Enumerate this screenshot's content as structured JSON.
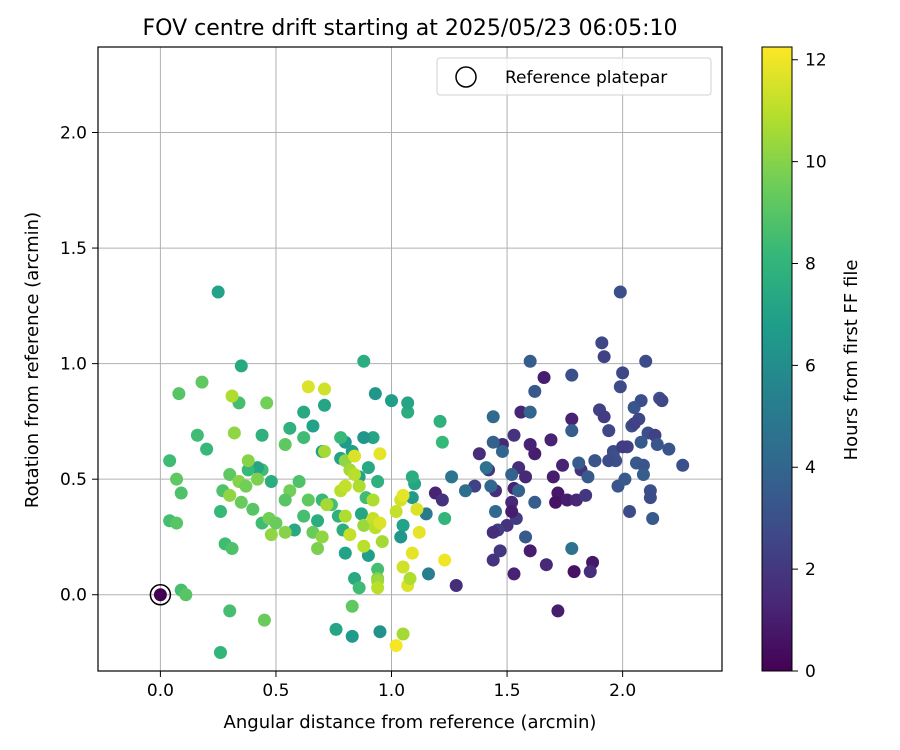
{
  "chart_data": {
    "type": "scatter",
    "title": "FOV centre drift starting at 2025/05/23 06:05:10",
    "xlabel": "Angular distance from reference (arcmin)",
    "ylabel": "Rotation from reference (arcmin)",
    "xlim": [
      -0.27,
      2.43
    ],
    "ylim": [
      -0.33,
      2.37
    ],
    "xticks": [
      0.0,
      0.5,
      1.0,
      1.5,
      2.0
    ],
    "yticks": [
      0.0,
      0.5,
      1.0,
      1.5,
      2.0
    ],
    "grid": true,
    "legend": {
      "label": "Reference platepar",
      "location": "upper right"
    },
    "reference_point": {
      "x": 0.0,
      "y": 0.0,
      "c": 0
    },
    "colorbar": {
      "label": "Hours from first FF file",
      "colormap": "viridis",
      "range": [
        0,
        12.25
      ],
      "ticks": [
        0,
        2,
        4,
        6,
        8,
        10,
        12
      ]
    },
    "points": [
      {
        "x": 1.72,
        "y": -0.07,
        "c": 1.0
      },
      {
        "x": 1.38,
        "y": 0.61,
        "c": 1.6
      },
      {
        "x": 1.48,
        "y": 0.65,
        "c": 1.4
      },
      {
        "x": 1.52,
        "y": 0.4,
        "c": 1.4
      },
      {
        "x": 1.5,
        "y": 0.3,
        "c": 1.8
      },
      {
        "x": 1.6,
        "y": 0.19,
        "c": 1.0
      },
      {
        "x": 1.66,
        "y": 0.94,
        "c": 1.0
      },
      {
        "x": 1.78,
        "y": 0.76,
        "c": 1.2
      },
      {
        "x": 1.79,
        "y": 0.1,
        "c": 0.6
      },
      {
        "x": 1.87,
        "y": 0.14,
        "c": 0.8
      },
      {
        "x": 1.86,
        "y": 0.1,
        "c": 1.6
      },
      {
        "x": 1.7,
        "y": 0.51,
        "c": 1.0
      },
      {
        "x": 1.72,
        "y": 0.44,
        "c": 0.8
      },
      {
        "x": 1.74,
        "y": 0.56,
        "c": 1.2
      },
      {
        "x": 1.62,
        "y": 0.61,
        "c": 1.0
      },
      {
        "x": 1.56,
        "y": 0.79,
        "c": 1.3
      },
      {
        "x": 1.53,
        "y": 0.69,
        "c": 1.8
      },
      {
        "x": 1.6,
        "y": 0.65,
        "c": 1.2
      },
      {
        "x": 1.55,
        "y": 0.55,
        "c": 1.6
      },
      {
        "x": 1.58,
        "y": 0.51,
        "c": 1.4
      },
      {
        "x": 1.53,
        "y": 0.09,
        "c": 1.2
      },
      {
        "x": 1.47,
        "y": 0.19,
        "c": 2.0
      },
      {
        "x": 1.46,
        "y": 0.28,
        "c": 2.2
      },
      {
        "x": 1.44,
        "y": 0.15,
        "c": 1.8
      },
      {
        "x": 1.44,
        "y": 0.27,
        "c": 1.6
      },
      {
        "x": 1.54,
        "y": 0.33,
        "c": 2.2
      },
      {
        "x": 1.53,
        "y": 0.46,
        "c": 1.2
      },
      {
        "x": 1.52,
        "y": 0.36,
        "c": 1.0
      },
      {
        "x": 1.45,
        "y": 0.45,
        "c": 1.6
      },
      {
        "x": 1.42,
        "y": 0.54,
        "c": 2.0
      },
      {
        "x": 1.36,
        "y": 0.47,
        "c": 2.4
      },
      {
        "x": 1.28,
        "y": 0.04,
        "c": 1.6
      },
      {
        "x": 1.19,
        "y": 0.44,
        "c": 1.2
      },
      {
        "x": 1.22,
        "y": 0.41,
        "c": 1.8
      },
      {
        "x": 1.67,
        "y": 0.13,
        "c": 1.4
      },
      {
        "x": 1.69,
        "y": 0.67,
        "c": 1.2
      },
      {
        "x": 1.71,
        "y": 0.4,
        "c": 0.6
      },
      {
        "x": 1.76,
        "y": 0.41,
        "c": 1.0
      },
      {
        "x": 1.8,
        "y": 0.41,
        "c": 1.4
      },
      {
        "x": 1.82,
        "y": 0.54,
        "c": 1.8
      },
      {
        "x": 1.84,
        "y": 0.43,
        "c": 2.0
      },
      {
        "x": 1.88,
        "y": 0.58,
        "c": 2.0
      },
      {
        "x": 1.9,
        "y": 0.8,
        "c": 2.4
      },
      {
        "x": 1.91,
        "y": 1.09,
        "c": 2.6
      },
      {
        "x": 1.92,
        "y": 1.03,
        "c": 2.4
      },
      {
        "x": 1.92,
        "y": 0.77,
        "c": 2.2
      },
      {
        "x": 1.94,
        "y": 0.71,
        "c": 2.6
      },
      {
        "x": 1.96,
        "y": 0.62,
        "c": 2.8
      },
      {
        "x": 1.97,
        "y": 0.58,
        "c": 3.0
      },
      {
        "x": 1.99,
        "y": 0.9,
        "c": 2.8
      },
      {
        "x": 1.99,
        "y": 1.31,
        "c": 3.0
      },
      {
        "x": 1.98,
        "y": 0.47,
        "c": 3.2
      },
      {
        "x": 2.0,
        "y": 0.96,
        "c": 2.6
      },
      {
        "x": 2.01,
        "y": 0.5,
        "c": 3.4
      },
      {
        "x": 2.02,
        "y": 0.64,
        "c": 2.4
      },
      {
        "x": 2.03,
        "y": 0.36,
        "c": 2.8
      },
      {
        "x": 2.04,
        "y": 0.73,
        "c": 3.0
      },
      {
        "x": 2.05,
        "y": 0.81,
        "c": 3.2
      },
      {
        "x": 2.06,
        "y": 0.57,
        "c": 3.4
      },
      {
        "x": 2.07,
        "y": 0.76,
        "c": 2.6
      },
      {
        "x": 2.08,
        "y": 0.84,
        "c": 3.0
      },
      {
        "x": 2.09,
        "y": 0.56,
        "c": 3.2
      },
      {
        "x": 2.09,
        "y": 0.52,
        "c": 3.6
      },
      {
        "x": 2.1,
        "y": 1.01,
        "c": 2.8
      },
      {
        "x": 2.11,
        "y": 0.7,
        "c": 3.0
      },
      {
        "x": 2.12,
        "y": 0.45,
        "c": 3.0
      },
      {
        "x": 2.12,
        "y": 0.42,
        "c": 2.8
      },
      {
        "x": 2.13,
        "y": 0.33,
        "c": 3.4
      },
      {
        "x": 2.14,
        "y": 0.69,
        "c": 2.4
      },
      {
        "x": 2.15,
        "y": 0.65,
        "c": 3.2
      },
      {
        "x": 2.16,
        "y": 0.85,
        "c": 3.0
      },
      {
        "x": 2.17,
        "y": 0.84,
        "c": 2.6
      },
      {
        "x": 2.2,
        "y": 0.63,
        "c": 3.2
      },
      {
        "x": 2.26,
        "y": 0.56,
        "c": 3.0
      },
      {
        "x": 2.05,
        "y": 0.74,
        "c": 2.4
      },
      {
        "x": 2.08,
        "y": 0.66,
        "c": 3.4
      },
      {
        "x": 2.0,
        "y": 0.64,
        "c": 2.2
      },
      {
        "x": 1.96,
        "y": 0.6,
        "c": 3.0
      },
      {
        "x": 1.94,
        "y": 0.58,
        "c": 2.8
      },
      {
        "x": 1.88,
        "y": 0.58,
        "c": 3.2
      },
      {
        "x": 1.85,
        "y": 0.51,
        "c": 3.4
      },
      {
        "x": 1.78,
        "y": 0.71,
        "c": 3.6
      },
      {
        "x": 1.78,
        "y": 0.95,
        "c": 3.0
      },
      {
        "x": 1.81,
        "y": 0.57,
        "c": 3.6
      },
      {
        "x": 1.62,
        "y": 0.88,
        "c": 3.4
      },
      {
        "x": 1.6,
        "y": 1.01,
        "c": 3.6
      },
      {
        "x": 1.6,
        "y": 0.79,
        "c": 4.0
      },
      {
        "x": 1.62,
        "y": 0.4,
        "c": 3.6
      },
      {
        "x": 1.58,
        "y": 0.25,
        "c": 3.4
      },
      {
        "x": 1.55,
        "y": 0.45,
        "c": 3.8
      },
      {
        "x": 1.52,
        "y": 0.52,
        "c": 3.8
      },
      {
        "x": 1.48,
        "y": 0.62,
        "c": 4.0
      },
      {
        "x": 1.44,
        "y": 0.77,
        "c": 4.2
      },
      {
        "x": 1.44,
        "y": 0.66,
        "c": 3.8
      },
      {
        "x": 1.45,
        "y": 0.36,
        "c": 4.2
      },
      {
        "x": 1.43,
        "y": 0.47,
        "c": 4.0
      },
      {
        "x": 1.41,
        "y": 0.55,
        "c": 4.6
      },
      {
        "x": 1.32,
        "y": 0.45,
        "c": 4.4
      },
      {
        "x": 1.78,
        "y": 0.2,
        "c": 4.6
      },
      {
        "x": 1.26,
        "y": 0.51,
        "c": 4.8
      },
      {
        "x": 1.16,
        "y": 0.09,
        "c": 5.2
      },
      {
        "x": 1.15,
        "y": 0.35,
        "c": 5.0
      },
      {
        "x": 1.09,
        "y": 0.42,
        "c": 6.6
      },
      {
        "x": 1.1,
        "y": 0.48,
        "c": 7.2
      },
      {
        "x": 1.09,
        "y": 0.51,
        "c": 7.6
      },
      {
        "x": 1.23,
        "y": 0.33,
        "c": 8.0
      },
      {
        "x": 1.05,
        "y": 0.3,
        "c": 7.0
      },
      {
        "x": 1.04,
        "y": 0.25,
        "c": 6.4
      },
      {
        "x": 0.94,
        "y": 0.11,
        "c": 8.6
      },
      {
        "x": 0.94,
        "y": 0.07,
        "c": 9.8
      },
      {
        "x": 0.95,
        "y": -0.16,
        "c": 6.2
      },
      {
        "x": 1.21,
        "y": 0.75,
        "c": 7.8
      },
      {
        "x": 1.22,
        "y": 0.66,
        "c": 8.2
      },
      {
        "x": 1.07,
        "y": 0.79,
        "c": 7.6
      },
      {
        "x": 1.07,
        "y": 0.83,
        "c": 7.2
      },
      {
        "x": 1.0,
        "y": 0.84,
        "c": 6.8
      },
      {
        "x": 0.93,
        "y": 0.87,
        "c": 6.4
      },
      {
        "x": 0.88,
        "y": 1.01,
        "c": 7.6
      },
      {
        "x": 0.92,
        "y": 0.68,
        "c": 7.2
      },
      {
        "x": 0.88,
        "y": 0.68,
        "c": 6.4
      },
      {
        "x": 0.8,
        "y": 0.66,
        "c": 6.6
      },
      {
        "x": 0.78,
        "y": 0.68,
        "c": 8.2
      },
      {
        "x": 0.9,
        "y": 0.55,
        "c": 7.4
      },
      {
        "x": 0.83,
        "y": 0.62,
        "c": 6.8
      },
      {
        "x": 0.86,
        "y": 0.51,
        "c": 7.0
      },
      {
        "x": 0.78,
        "y": 0.59,
        "c": 7.0
      },
      {
        "x": 0.94,
        "y": 0.49,
        "c": 7.8
      },
      {
        "x": 0.89,
        "y": 0.42,
        "c": 8.4
      },
      {
        "x": 0.87,
        "y": 0.35,
        "c": 7.2
      },
      {
        "x": 0.9,
        "y": 0.17,
        "c": 6.8
      },
      {
        "x": 0.8,
        "y": 0.18,
        "c": 7.0
      },
      {
        "x": 0.84,
        "y": 0.07,
        "c": 7.4
      },
      {
        "x": 0.86,
        "y": 0.03,
        "c": 8.4
      },
      {
        "x": 0.83,
        "y": -0.05,
        "c": 9.2
      },
      {
        "x": 0.83,
        "y": -0.18,
        "c": 6.6
      },
      {
        "x": 0.76,
        "y": -0.15,
        "c": 7.2
      },
      {
        "x": 0.79,
        "y": 0.28,
        "c": 7.6
      },
      {
        "x": 0.77,
        "y": 0.34,
        "c": 7.8
      },
      {
        "x": 0.74,
        "y": 0.39,
        "c": 8.6
      },
      {
        "x": 0.7,
        "y": 0.41,
        "c": 8.2
      },
      {
        "x": 0.68,
        "y": 0.32,
        "c": 7.6
      },
      {
        "x": 0.7,
        "y": 0.62,
        "c": 6.8
      },
      {
        "x": 0.71,
        "y": 0.82,
        "c": 7.2
      },
      {
        "x": 0.66,
        "y": 0.73,
        "c": 7.0
      },
      {
        "x": 0.62,
        "y": 0.79,
        "c": 7.4
      },
      {
        "x": 0.62,
        "y": 0.68,
        "c": 8.4
      },
      {
        "x": 0.56,
        "y": 0.72,
        "c": 7.8
      },
      {
        "x": 0.54,
        "y": 0.65,
        "c": 9.2
      },
      {
        "x": 0.6,
        "y": 0.49,
        "c": 8.8
      },
      {
        "x": 0.58,
        "y": 0.28,
        "c": 7.4
      },
      {
        "x": 0.62,
        "y": 0.34,
        "c": 8.6
      },
      {
        "x": 0.56,
        "y": 0.45,
        "c": 9.6
      },
      {
        "x": 0.54,
        "y": 0.41,
        "c": 9.0
      },
      {
        "x": 0.48,
        "y": 0.49,
        "c": 7.6
      },
      {
        "x": 0.44,
        "y": 0.54,
        "c": 8.4
      },
      {
        "x": 0.42,
        "y": 0.55,
        "c": 7.2
      },
      {
        "x": 0.38,
        "y": 0.54,
        "c": 8.2
      },
      {
        "x": 0.44,
        "y": 0.69,
        "c": 7.8
      },
      {
        "x": 0.34,
        "y": 0.83,
        "c": 8.6
      },
      {
        "x": 0.35,
        "y": 0.99,
        "c": 7.4
      },
      {
        "x": 0.25,
        "y": 1.31,
        "c": 7.0
      },
      {
        "x": 0.2,
        "y": 0.63,
        "c": 8.2
      },
      {
        "x": 0.16,
        "y": 0.69,
        "c": 8.4
      },
      {
        "x": 0.08,
        "y": 0.87,
        "c": 9.0
      },
      {
        "x": 0.18,
        "y": 0.92,
        "c": 9.2
      },
      {
        "x": 0.31,
        "y": 0.86,
        "c": 10.8
      },
      {
        "x": 0.32,
        "y": 0.7,
        "c": 10.2
      },
      {
        "x": 0.46,
        "y": 0.83,
        "c": 9.6
      },
      {
        "x": 0.3,
        "y": 0.52,
        "c": 9.2
      },
      {
        "x": 0.34,
        "y": 0.49,
        "c": 10.0
      },
      {
        "x": 0.37,
        "y": 0.47,
        "c": 9.6
      },
      {
        "x": 0.38,
        "y": 0.58,
        "c": 10.0
      },
      {
        "x": 0.42,
        "y": 0.5,
        "c": 9.8
      },
      {
        "x": 0.27,
        "y": 0.45,
        "c": 8.8
      },
      {
        "x": 0.3,
        "y": 0.43,
        "c": 10.2
      },
      {
        "x": 0.26,
        "y": 0.36,
        "c": 8.2
      },
      {
        "x": 0.35,
        "y": 0.4,
        "c": 9.4
      },
      {
        "x": 0.4,
        "y": 0.37,
        "c": 9.0
      },
      {
        "x": 0.44,
        "y": 0.31,
        "c": 8.4
      },
      {
        "x": 0.47,
        "y": 0.33,
        "c": 9.6
      },
      {
        "x": 0.48,
        "y": 0.26,
        "c": 10.2
      },
      {
        "x": 0.5,
        "y": 0.31,
        "c": 9.4
      },
      {
        "x": 0.54,
        "y": 0.27,
        "c": 10.0
      },
      {
        "x": 0.64,
        "y": 0.41,
        "c": 9.2
      },
      {
        "x": 0.66,
        "y": 0.27,
        "c": 9.4
      },
      {
        "x": 0.68,
        "y": 0.2,
        "c": 9.8
      },
      {
        "x": 0.7,
        "y": 0.25,
        "c": 10.2
      },
      {
        "x": 0.72,
        "y": 0.39,
        "c": 10.6
      },
      {
        "x": 0.71,
        "y": 0.62,
        "c": 10.6
      },
      {
        "x": 0.64,
        "y": 0.9,
        "c": 11.6
      },
      {
        "x": 0.71,
        "y": 0.89,
        "c": 11.4
      },
      {
        "x": 0.78,
        "y": 0.45,
        "c": 11.0
      },
      {
        "x": 0.8,
        "y": 0.47,
        "c": 11.2
      },
      {
        "x": 0.8,
        "y": 0.58,
        "c": 10.2
      },
      {
        "x": 0.82,
        "y": 0.54,
        "c": 10.6
      },
      {
        "x": 0.84,
        "y": 0.52,
        "c": 11.0
      },
      {
        "x": 0.86,
        "y": 0.47,
        "c": 10.8
      },
      {
        "x": 0.84,
        "y": 0.6,
        "c": 11.6
      },
      {
        "x": 0.8,
        "y": 0.34,
        "c": 10.8
      },
      {
        "x": 0.82,
        "y": 0.26,
        "c": 11.2
      },
      {
        "x": 0.88,
        "y": 0.3,
        "c": 10.4
      },
      {
        "x": 0.88,
        "y": 0.21,
        "c": 11.0
      },
      {
        "x": 0.92,
        "y": 0.33,
        "c": 11.2
      },
      {
        "x": 0.92,
        "y": 0.41,
        "c": 10.8
      },
      {
        "x": 0.93,
        "y": 0.29,
        "c": 11.0
      },
      {
        "x": 0.95,
        "y": 0.61,
        "c": 11.8
      },
      {
        "x": 0.96,
        "y": 0.23,
        "c": 10.6
      },
      {
        "x": 0.95,
        "y": 0.31,
        "c": 11.6
      },
      {
        "x": 0.94,
        "y": 0.06,
        "c": 10.4
      },
      {
        "x": 0.94,
        "y": 0.03,
        "c": 11.0
      },
      {
        "x": 1.02,
        "y": 0.36,
        "c": 11.2
      },
      {
        "x": 1.04,
        "y": 0.41,
        "c": 11.4
      },
      {
        "x": 1.05,
        "y": 0.43,
        "c": 11.8
      },
      {
        "x": 1.05,
        "y": 0.12,
        "c": 11.4
      },
      {
        "x": 1.07,
        "y": 0.04,
        "c": 11.6
      },
      {
        "x": 1.08,
        "y": 0.07,
        "c": 10.8
      },
      {
        "x": 1.09,
        "y": 0.18,
        "c": 11.8
      },
      {
        "x": 1.11,
        "y": 0.37,
        "c": 11.6
      },
      {
        "x": 1.12,
        "y": 0.27,
        "c": 11.8
      },
      {
        "x": 1.23,
        "y": 0.15,
        "c": 12.0
      },
      {
        "x": 1.05,
        "y": -0.17,
        "c": 10.6
      },
      {
        "x": 1.02,
        "y": -0.22,
        "c": 12.1
      },
      {
        "x": 0.04,
        "y": 0.58,
        "c": 8.4
      },
      {
        "x": 0.04,
        "y": 0.32,
        "c": 8.6
      },
      {
        "x": 0.07,
        "y": 0.31,
        "c": 9.0
      },
      {
        "x": 0.07,
        "y": 0.5,
        "c": 9.2
      },
      {
        "x": 0.09,
        "y": 0.44,
        "c": 8.8
      },
      {
        "x": 0.09,
        "y": 0.02,
        "c": 8.6
      },
      {
        "x": 0.11,
        "y": 0.0,
        "c": 9.0
      },
      {
        "x": 0.28,
        "y": 0.22,
        "c": 8.4
      },
      {
        "x": 0.31,
        "y": 0.2,
        "c": 8.8
      },
      {
        "x": 0.3,
        "y": -0.07,
        "c": 8.6
      },
      {
        "x": 0.45,
        "y": -0.11,
        "c": 9.4
      },
      {
        "x": 0.26,
        "y": -0.25,
        "c": 8.0
      }
    ]
  }
}
